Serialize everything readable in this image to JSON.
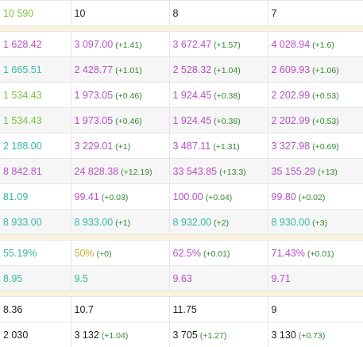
{
  "colors": {
    "green": "#7cc140",
    "purple": "#b94fc8",
    "teal": "#36b7a8",
    "olive": "#c2b12a",
    "black": "#222222",
    "delta": "#2e8b2e",
    "separator": "#fbf3dd",
    "alt_row": "#f6f6f6"
  },
  "table": {
    "rows": [
      {
        "type": "data",
        "shade": false,
        "cells": [
          {
            "value": "10 590",
            "color": "green"
          },
          {
            "value": "10",
            "color": "black"
          },
          {
            "value": "8",
            "color": "black"
          },
          {
            "value": "7",
            "color": "black"
          }
        ]
      },
      {
        "type": "separator"
      },
      {
        "type": "data",
        "shade": false,
        "cells": [
          {
            "value": "1 628.42",
            "color": "purple"
          },
          {
            "value": "3 097.00",
            "delta": "(+1.41)",
            "color": "purple"
          },
          {
            "value": "3 672.47",
            "delta": "(+1.57)",
            "color": "purple"
          },
          {
            "value": "4 028.94",
            "delta": "(+1.6)",
            "color": "purple"
          }
        ]
      },
      {
        "type": "data",
        "shade": true,
        "cells": [
          {
            "value": "1 665.51",
            "color": "teal"
          },
          {
            "value": "2 428.77",
            "delta": "(+1.01)",
            "color": "purple"
          },
          {
            "value": "2 528.32",
            "delta": "(+1.04)",
            "color": "purple"
          },
          {
            "value": "2 609.93",
            "delta": "(+1.06)",
            "color": "purple"
          }
        ]
      },
      {
        "type": "data",
        "shade": false,
        "cells": [
          {
            "value": "1 534.43",
            "color": "green"
          },
          {
            "value": "1 973.05",
            "delta": "(+0.46)",
            "color": "purple"
          },
          {
            "value": "1 924.45",
            "delta": "(+0.38)",
            "color": "purple"
          },
          {
            "value": "2 202.99",
            "delta": "(+0.53)",
            "color": "purple"
          }
        ]
      },
      {
        "type": "data",
        "shade": true,
        "cells": [
          {
            "value": "1 534.43",
            "color": "green"
          },
          {
            "value": "1 973.05",
            "delta": "(+0.46)",
            "color": "purple"
          },
          {
            "value": "1 924.45",
            "delta": "(+0.38)",
            "color": "purple"
          },
          {
            "value": "2 202.99",
            "delta": "(+0.53)",
            "color": "purple"
          }
        ]
      },
      {
        "type": "data",
        "shade": false,
        "cells": [
          {
            "value": "2 188.00",
            "color": "teal"
          },
          {
            "value": "3 229.01",
            "delta": "(+1)",
            "color": "purple"
          },
          {
            "value": "3 487.11",
            "delta": "(+1.31)",
            "color": "purple"
          },
          {
            "value": "3 327.98",
            "delta": "(+0.69)",
            "color": "purple"
          }
        ]
      },
      {
        "type": "data",
        "shade": true,
        "cells": [
          {
            "value": "8 842.81",
            "color": "purple"
          },
          {
            "value": "24 828.38",
            "delta": "(+12.19)",
            "color": "purple"
          },
          {
            "value": "33 543.85",
            "delta": "(+13.3)",
            "color": "purple"
          },
          {
            "value": "35 155.29",
            "delta": "(+13)",
            "color": "purple"
          }
        ]
      },
      {
        "type": "data",
        "shade": false,
        "cells": [
          {
            "value": "81.09",
            "color": "teal"
          },
          {
            "value": "99.41",
            "delta": "(+0.03)",
            "color": "purple"
          },
          {
            "value": "100.00",
            "delta": "(+0.04)",
            "color": "purple"
          },
          {
            "value": "99.80",
            "delta": "(+0.02)",
            "color": "purple"
          }
        ]
      },
      {
        "type": "data",
        "shade": true,
        "cells": [
          {
            "value": "8 933.00",
            "color": "teal"
          },
          {
            "value": "8 933.00",
            "delta": "(+1)",
            "color": "teal"
          },
          {
            "value": "8 932.00",
            "delta": "(+2)",
            "color": "teal"
          },
          {
            "value": "8 930.00",
            "delta": "(+3)",
            "color": "teal"
          }
        ]
      },
      {
        "type": "separator"
      },
      {
        "type": "data",
        "shade": false,
        "cells": [
          {
            "value": "55.19%",
            "color": "teal"
          },
          {
            "value": "50%",
            "delta": "(+0)",
            "color": "olive"
          },
          {
            "value": "62.5%",
            "delta": "(+0.01)",
            "color": "purple"
          },
          {
            "value": "71.43%",
            "delta": "(+0.01)",
            "color": "purple"
          }
        ]
      },
      {
        "type": "data",
        "shade": true,
        "cells": [
          {
            "value": "8.95",
            "color": "teal"
          },
          {
            "value": "9.5",
            "color": "teal"
          },
          {
            "value": "9.63",
            "color": "purple"
          },
          {
            "value": "9.71",
            "color": "purple"
          }
        ]
      },
      {
        "type": "separator"
      },
      {
        "type": "data",
        "shade": false,
        "cells": [
          {
            "value": "8.36",
            "color": "black"
          },
          {
            "value": "10.7",
            "color": "black"
          },
          {
            "value": "11.75",
            "color": "black"
          },
          {
            "value": "9",
            "color": "black"
          }
        ]
      },
      {
        "type": "data",
        "shade": false,
        "cells": [
          {
            "value": "2 030",
            "color": "black"
          },
          {
            "value": "3 132",
            "delta": "(+1.04)",
            "color": "black"
          },
          {
            "value": "3 705",
            "delta": "(+1.27)",
            "color": "black"
          },
          {
            "value": "3 130",
            "delta": "(+0.73)",
            "color": "black"
          }
        ]
      }
    ]
  }
}
